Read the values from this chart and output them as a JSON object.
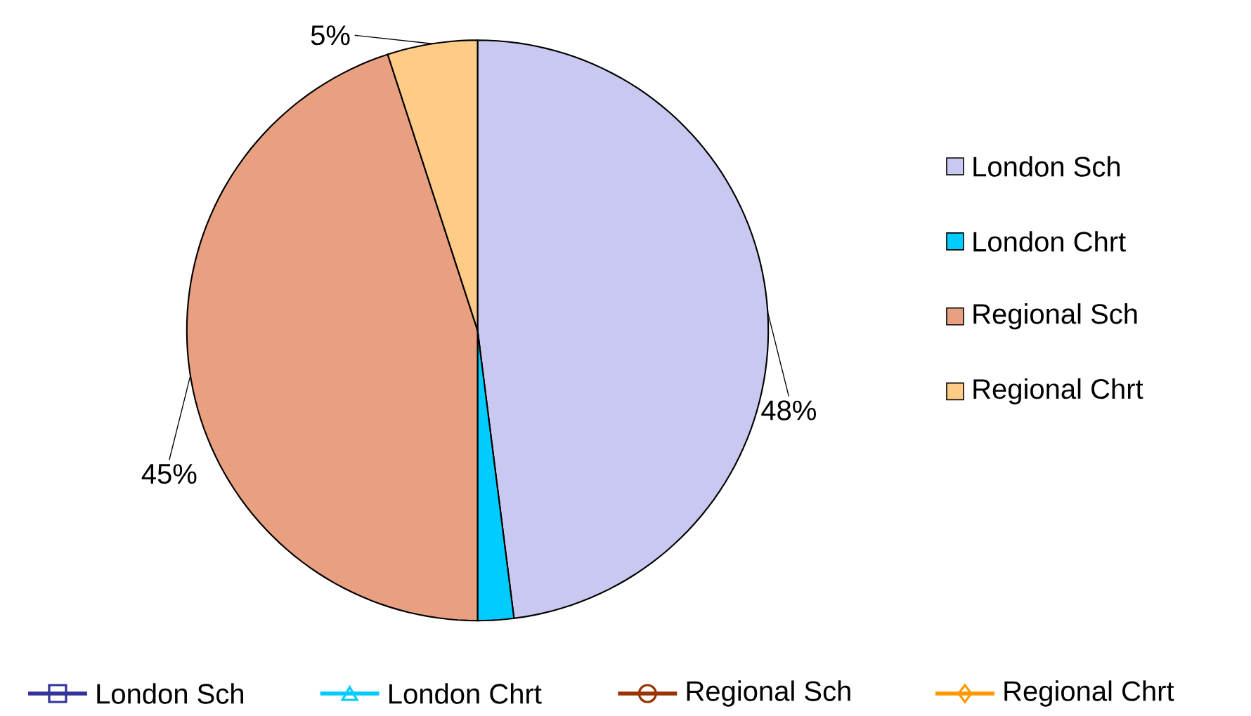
{
  "chart_data": [
    {
      "type": "pie",
      "categories": [
        "London Sch",
        "London Chrt",
        "Regional Sch",
        "Regional Chrt"
      ],
      "values": [
        48,
        2,
        45,
        5
      ],
      "value_labels": [
        "48%",
        null,
        "45%",
        "5%"
      ],
      "colors": [
        "#c8c8f0",
        "#00ccff",
        "#e8a080",
        "#ffcc88"
      ],
      "legend": "right"
    },
    {
      "type": "other",
      "legend": "bottom",
      "series": [
        {
          "name": "London Sch",
          "color": "#333399",
          "marker": "square"
        },
        {
          "name": "London Chrt",
          "color": "#00ccff",
          "marker": "triangle"
        },
        {
          "name": "Regional Sch",
          "color": "#993300",
          "marker": "circle"
        },
        {
          "name": "Regional Chrt",
          "color": "#ff9900",
          "marker": "diamond"
        }
      ]
    }
  ]
}
